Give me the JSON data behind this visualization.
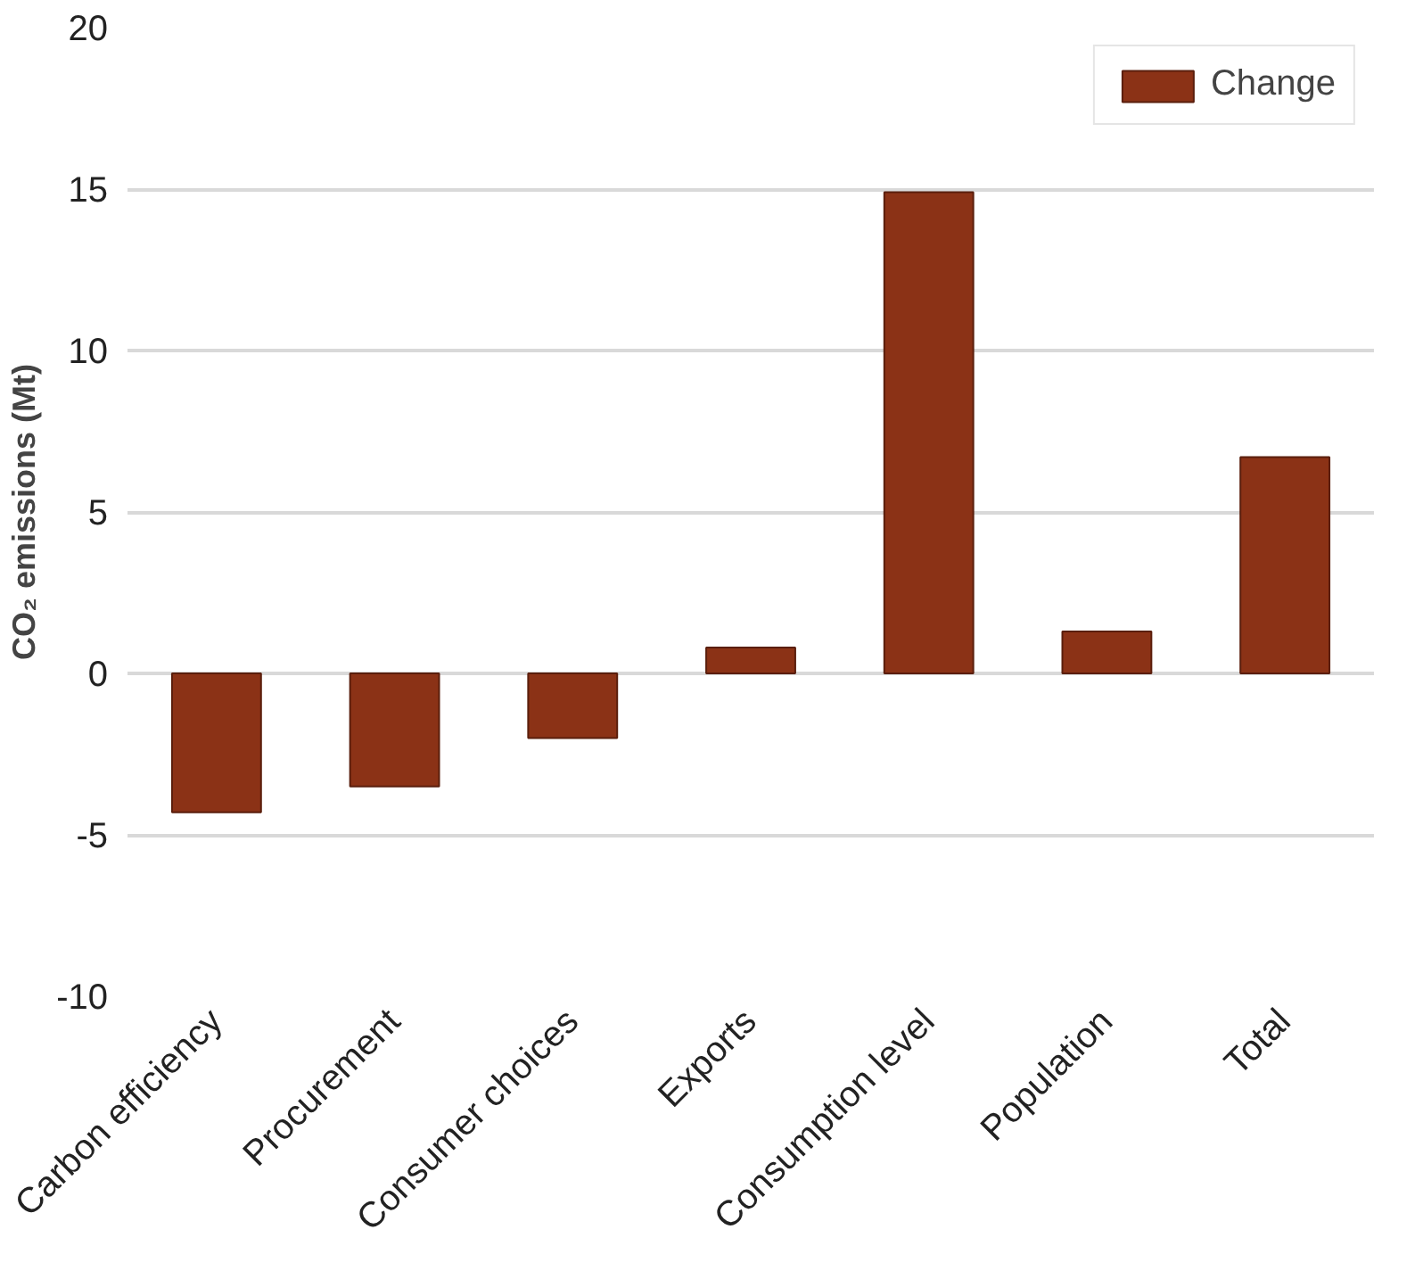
{
  "chart_data": {
    "type": "bar",
    "ylabel": "CO₂ emissions (Mt)",
    "categories": [
      "Carbon efficiency",
      "Procurement",
      "Consumer choices",
      "Exports",
      "Consumption level",
      "Population",
      "Total"
    ],
    "series": [
      {
        "name": "Change",
        "color": "#8b3216",
        "values": [
          -4.3,
          -3.5,
          -2.0,
          0.8,
          14.9,
          1.3,
          6.7
        ]
      }
    ],
    "ylim": [
      -10,
      20
    ],
    "yticks": [
      -10,
      -5,
      0,
      5,
      10,
      15,
      20
    ],
    "grid": "y",
    "legend": "top right"
  }
}
